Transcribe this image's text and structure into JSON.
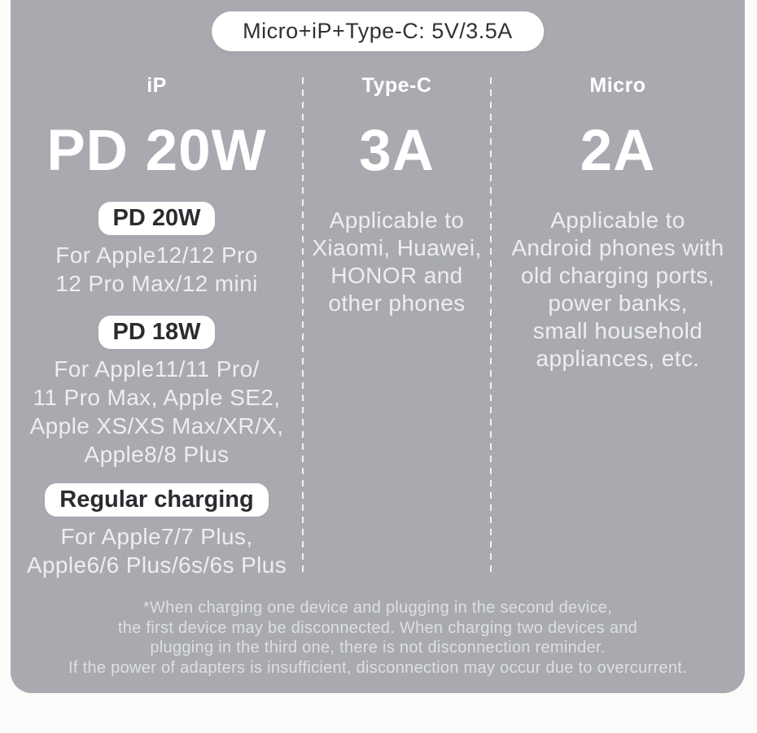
{
  "colors": {
    "page_bg": "#fbfbf9",
    "panel_bg": "#a8aab0",
    "badge_bg": "#ffffff",
    "badge_text": "#2a2c30",
    "heading_text": "#ffffff",
    "body_text": "#e6e7ea"
  },
  "top_badge": {
    "label": "Micro+iP+Type-C: 5V/3.5A"
  },
  "columns": [
    {
      "header": "iP",
      "big": "PD 20W",
      "sections": [
        {
          "badge": "PD 20W",
          "lines": [
            "For Apple12/12 Pro",
            "12 Pro Max/12 mini"
          ]
        },
        {
          "badge": "PD 18W",
          "lines": [
            "For Apple11/11 Pro/",
            "11 Pro Max, Apple SE2,",
            "Apple XS/XS Max/XR/X,",
            "Apple8/8 Plus"
          ]
        },
        {
          "badge": "Regular charging",
          "lines": [
            "For Apple7/7 Plus,",
            "Apple6/6 Plus/6s/6s Plus"
          ]
        }
      ]
    },
    {
      "header": "Type-C",
      "big": "3A",
      "lines": [
        "Applicable to",
        "Xiaomi, Huawei,",
        "HONOR and",
        "other phones"
      ]
    },
    {
      "header": "Micro",
      "big": "2A",
      "lines": [
        "Applicable to",
        "Android phones with",
        "old charging ports,",
        "power banks,",
        "small household",
        "appliances, etc."
      ]
    }
  ],
  "footnote": {
    "lines": [
      "*When charging one device and plugging in the second device,",
      "the first device may be disconnected. When charging two devices and",
      "plugging in the third one, there is not disconnection reminder.",
      "If the power of adapters is insufficient, disconnection may occur due to overcurrent."
    ]
  }
}
